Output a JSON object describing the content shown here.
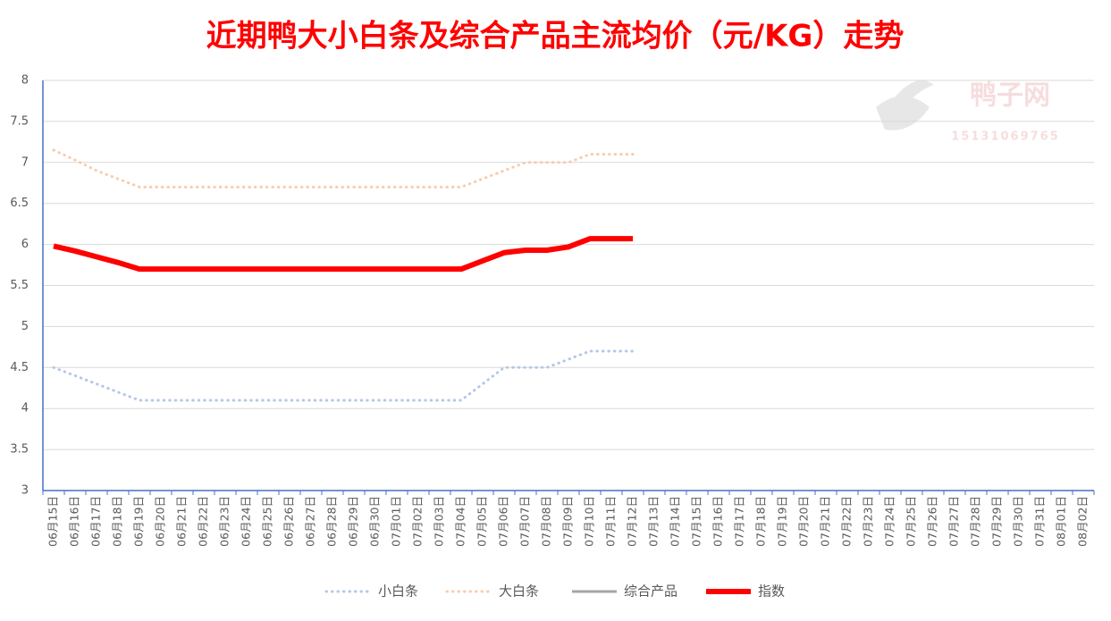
{
  "chart_data": {
    "type": "line",
    "title": "近期鸭大小白条及综合产品主流均价（元/KG）走势",
    "categories": [
      "06月15日",
      "06月16日",
      "06月17日",
      "06月18日",
      "06月19日",
      "06月20日",
      "06月21日",
      "06月22日",
      "06月23日",
      "06月24日",
      "06月25日",
      "06月26日",
      "06月27日",
      "06月28日",
      "06月29日",
      "06月30日",
      "07月01日",
      "07月02日",
      "07月03日",
      "07月04日",
      "07月05日",
      "07月06日",
      "07月07日",
      "07月08日",
      "07月09日",
      "07月10日",
      "07月11日",
      "07月12日",
      "07月13日",
      "07月14日",
      "07月15日",
      "07月16日",
      "07月17日",
      "07月18日",
      "07月19日",
      "07月20日",
      "07月21日",
      "07月22日",
      "07月23日",
      "07月24日",
      "07月25日",
      "07月26日",
      "07月27日",
      "07月28日",
      "07月29日",
      "07月30日",
      "07月31日",
      "08月01日",
      "08月02日"
    ],
    "series": [
      {
        "name": "小白条",
        "color": "#b4c7e7",
        "style": "dotted",
        "values": [
          4.5,
          4.4,
          4.3,
          4.2,
          4.1,
          4.1,
          4.1,
          4.1,
          4.1,
          4.1,
          4.1,
          4.1,
          4.1,
          4.1,
          4.1,
          4.1,
          4.1,
          4.1,
          4.1,
          4.1,
          4.3,
          4.5,
          4.5,
          4.5,
          4.6,
          4.7,
          4.7,
          4.7,
          null,
          null,
          null,
          null,
          null,
          null,
          null,
          null,
          null,
          null,
          null,
          null,
          null,
          null,
          null,
          null,
          null,
          null,
          null,
          null,
          null
        ]
      },
      {
        "name": "大白条",
        "color": "#f8cbad",
        "style": "dotted",
        "values": [
          7.15,
          7.03,
          6.9,
          6.8,
          6.7,
          6.7,
          6.7,
          6.7,
          6.7,
          6.7,
          6.7,
          6.7,
          6.7,
          6.7,
          6.7,
          6.7,
          6.7,
          6.7,
          6.7,
          6.7,
          6.8,
          6.9,
          7.0,
          7.0,
          7.0,
          7.1,
          7.1,
          7.1,
          null,
          null,
          null,
          null,
          null,
          null,
          null,
          null,
          null,
          null,
          null,
          null,
          null,
          null,
          null,
          null,
          null,
          null,
          null,
          null,
          null
        ]
      },
      {
        "name": "综合产品",
        "color": "#a5a5a5",
        "style": "solid",
        "values": [
          null,
          null,
          null,
          null,
          null,
          null,
          null,
          null,
          null,
          null,
          null,
          null,
          null,
          null,
          null,
          null,
          null,
          null,
          null,
          null,
          null,
          null,
          null,
          null,
          null,
          null,
          null,
          null,
          null,
          null,
          null,
          null,
          null,
          null,
          null,
          null,
          null,
          null,
          null,
          null,
          null,
          null,
          null,
          null,
          null,
          null,
          null,
          null,
          null
        ]
      },
      {
        "name": "指数",
        "color": "#ff0000",
        "style": "thick",
        "values": [
          5.98,
          5.92,
          5.85,
          5.78,
          5.7,
          5.7,
          5.7,
          5.7,
          5.7,
          5.7,
          5.7,
          5.7,
          5.7,
          5.7,
          5.7,
          5.7,
          5.7,
          5.7,
          5.7,
          5.7,
          5.8,
          5.9,
          5.93,
          5.93,
          5.97,
          6.07,
          6.07,
          6.07,
          null,
          null,
          null,
          null,
          null,
          null,
          null,
          null,
          null,
          null,
          null,
          null,
          null,
          null,
          null,
          null,
          null,
          null,
          null,
          null,
          null
        ]
      }
    ],
    "ylim": [
      3,
      8
    ],
    "yticks": [
      3,
      3.5,
      4,
      4.5,
      5,
      5.5,
      6,
      6.5,
      7,
      7.5,
      8
    ],
    "grid": true,
    "legend": "bottom",
    "watermark": {
      "text": "鸭子网",
      "phone": "15131069765"
    }
  }
}
